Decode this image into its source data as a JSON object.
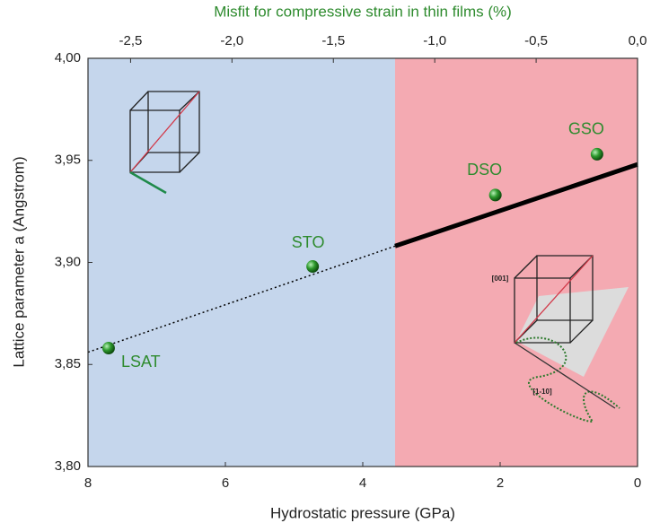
{
  "chart_data": {
    "type": "scatter",
    "x_label": "Hydrostatic pressure (GPa)",
    "x2_label": "Misfit for compressive strain in thin films (%)",
    "y_label": "Lattice parameter a (Angstrom)",
    "xlim": [
      8,
      0
    ],
    "xticks": [
      8,
      6,
      4,
      2,
      0
    ],
    "x2lim": [
      -2.71,
      0
    ],
    "x2ticks": [
      {
        "value": -2.5,
        "label": "-2,5"
      },
      {
        "value": -2.0,
        "label": "-2,0"
      },
      {
        "value": -1.5,
        "label": "-1,5"
      },
      {
        "value": -1.0,
        "label": "-1,0"
      },
      {
        "value": -0.5,
        "label": "-0,5"
      },
      {
        "value": 0.0,
        "label": "0,0"
      }
    ],
    "ylim": [
      3.8,
      4.0
    ],
    "yticks": [
      {
        "value": 3.8,
        "label": "3,80"
      },
      {
        "value": 3.85,
        "label": "3,85"
      },
      {
        "value": 3.9,
        "label": "3,90"
      },
      {
        "value": 3.95,
        "label": "3,95"
      },
      {
        "value": 4.0,
        "label": "4,00"
      }
    ],
    "regions": [
      {
        "from": 8,
        "to": 3.53,
        "color": "#c5d6ec"
      },
      {
        "from": 3.53,
        "to": 0,
        "color": "#f4aab2"
      }
    ],
    "points": {
      "labels": [
        "LSAT",
        "STO",
        "DSO",
        "GSO"
      ],
      "x": [
        7.7,
        4.73,
        2.07,
        0.59
      ],
      "values": [
        3.858,
        3.898,
        3.933,
        3.953
      ],
      "color": "#2e8b2e"
    },
    "lines": [
      {
        "style": "dotted",
        "color": "#000000",
        "x": [
          8,
          3.53
        ],
        "values": [
          3.856,
          3.908
        ]
      },
      {
        "style": "solid",
        "color": "#000000",
        "x": [
          3.53,
          0
        ],
        "values": [
          3.908,
          3.948
        ]
      }
    ],
    "inset_labels": [
      "[001]",
      "[1-10]"
    ]
  }
}
